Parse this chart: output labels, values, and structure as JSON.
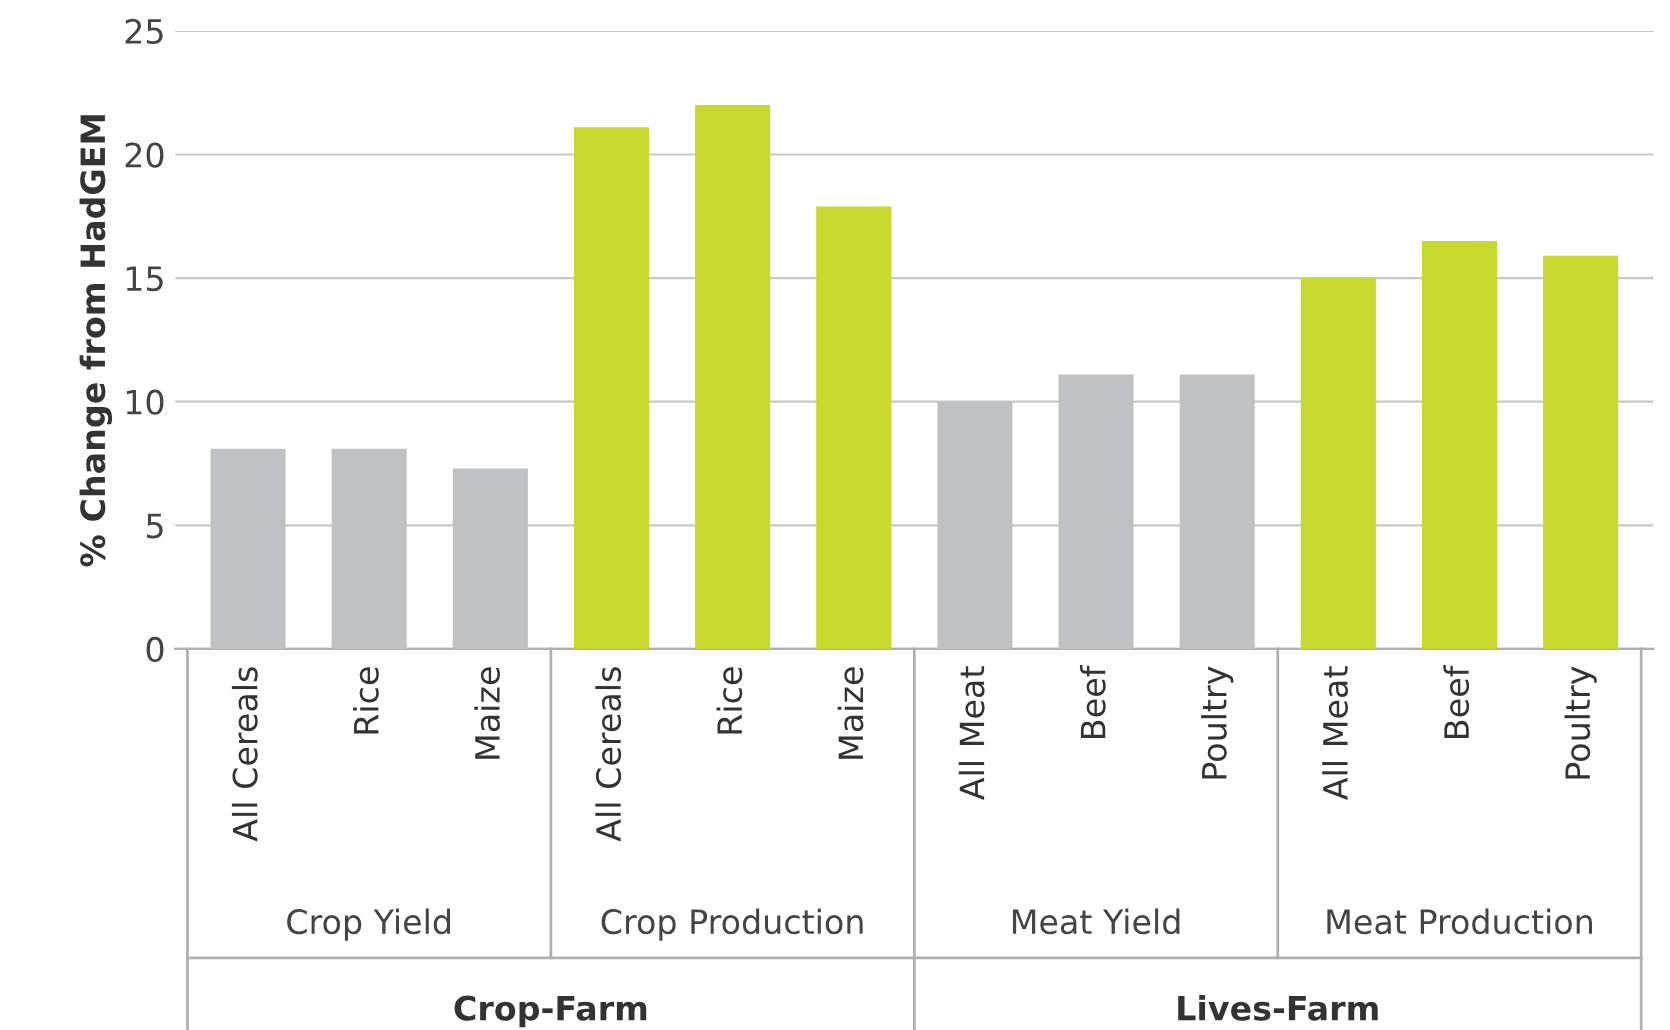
{
  "chart_data": {
    "type": "bar",
    "ylabel": "% Change from HadGEM",
    "categories": [
      "All Cereals",
      "Rice",
      "Maize",
      "All Cereals",
      "Rice",
      "Maize",
      "All Meat",
      "Beef",
      "Poultry",
      "All Meat",
      "Beef",
      "Poultry"
    ],
    "values": [
      8.1,
      8.1,
      7.3,
      21.1,
      22.0,
      17.9,
      10.0,
      11.1,
      11.1,
      15.0,
      16.5,
      15.9
    ],
    "colors": [
      "#c0c1c3",
      "#c0c1c3",
      "#c0c1c3",
      "#c8d92e",
      "#c8d92e",
      "#c8d92e",
      "#c0c1c3",
      "#c0c1c3",
      "#c0c1c3",
      "#c8d92e",
      "#c8d92e",
      "#c8d92e"
    ],
    "ylim": [
      0,
      25
    ],
    "yticks": [
      0,
      5,
      10,
      15,
      20,
      25
    ],
    "grid": "y",
    "annotations": [
      "Crop Yield",
      "Crop Production",
      "Meat Yield",
      "Meat Production",
      "Crop-Farm",
      "Lives-Farm"
    ]
  }
}
